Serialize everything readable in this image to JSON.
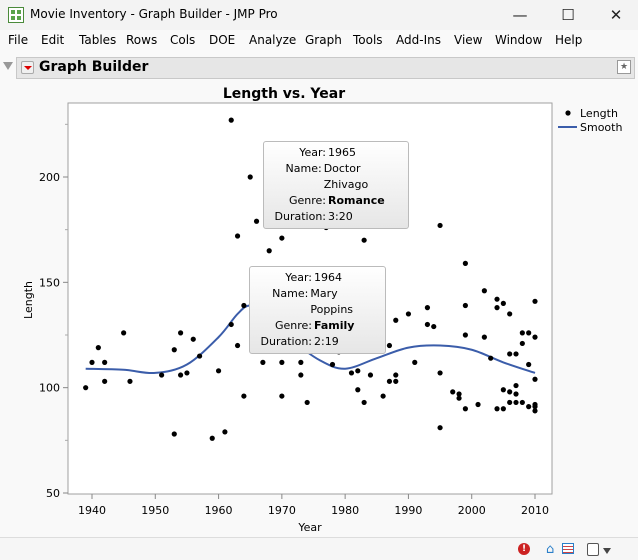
{
  "window": {
    "title": "Movie Inventory - Graph Builder - JMP Pro",
    "minimize": "—",
    "maximize": "☐",
    "close": "✕"
  },
  "menu": [
    "File",
    "Edit",
    "Tables",
    "Rows",
    "Cols",
    "DOE",
    "Analyze",
    "Graph",
    "Tools",
    "Add-Ins",
    "View",
    "Window",
    "Help"
  ],
  "panel": {
    "title": "Graph Builder"
  },
  "tooltips": [
    {
      "rows": [
        [
          "Year:",
          "1965",
          false
        ],
        [
          "Name:",
          "Doctor Zhivago",
          false
        ],
        [
          "Genre:",
          "Romance",
          true
        ],
        [
          "Duration:",
          "3:20",
          false
        ]
      ]
    },
    {
      "rows": [
        [
          "Year:",
          "1964",
          false
        ],
        [
          "Name:",
          "Mary Poppins",
          false
        ],
        [
          "Genre:",
          "Family",
          true
        ],
        [
          "Duration:",
          "2:19",
          false
        ]
      ]
    }
  ],
  "colors": {
    "points": "#000000",
    "smooth": "#3b5daa",
    "error": "#cc2222"
  },
  "chart_data": {
    "type": "scatter",
    "title": "Length vs. Year",
    "xlabel": "Year",
    "ylabel": "Length",
    "xlim": [
      1935.5,
      2012.5
    ],
    "ylim": [
      48,
      235
    ],
    "xticks": [
      1940,
      1950,
      1960,
      1970,
      1980,
      1990,
      2000,
      2010
    ],
    "yticks": [
      50,
      100,
      150,
      200
    ],
    "legend": {
      "position": "right",
      "entries": [
        "Length",
        "Smooth"
      ]
    },
    "points": [
      [
        1939,
        100
      ],
      [
        1940,
        112
      ],
      [
        1941,
        119
      ],
      [
        1942,
        112
      ],
      [
        1942,
        103
      ],
      [
        1945,
        126
      ],
      [
        1946,
        103
      ],
      [
        1951,
        106
      ],
      [
        1953,
        118
      ],
      [
        1953,
        78
      ],
      [
        1954,
        126
      ],
      [
        1954,
        106
      ],
      [
        1955,
        107
      ],
      [
        1956,
        123
      ],
      [
        1957,
        115
      ],
      [
        1959,
        76
      ],
      [
        1960,
        108
      ],
      [
        1961,
        79
      ],
      [
        1962,
        130
      ],
      [
        1962,
        227
      ],
      [
        1963,
        172
      ],
      [
        1963,
        120
      ],
      [
        1964,
        96
      ],
      [
        1964,
        139
      ],
      [
        1965,
        200
      ],
      [
        1966,
        179
      ],
      [
        1967,
        112
      ],
      [
        1968,
        165
      ],
      [
        1970,
        171
      ],
      [
        1970,
        112
      ],
      [
        1970,
        96
      ],
      [
        1973,
        112
      ],
      [
        1973,
        106
      ],
      [
        1974,
        93
      ],
      [
        1977,
        176
      ],
      [
        1978,
        111
      ],
      [
        1979,
        117
      ],
      [
        1981,
        107
      ],
      [
        1982,
        121
      ],
      [
        1982,
        108
      ],
      [
        1982,
        99
      ],
      [
        1983,
        170
      ],
      [
        1983,
        93
      ],
      [
        1984,
        106
      ],
      [
        1986,
        96
      ],
      [
        1987,
        120
      ],
      [
        1987,
        103
      ],
      [
        1988,
        103
      ],
      [
        1988,
        132
      ],
      [
        1988,
        106
      ],
      [
        1990,
        135
      ],
      [
        1991,
        112
      ],
      [
        1993,
        138
      ],
      [
        1993,
        130
      ],
      [
        1994,
        129
      ],
      [
        1995,
        177
      ],
      [
        1995,
        107
      ],
      [
        1995,
        81
      ],
      [
        1997,
        98
      ],
      [
        1998,
        97
      ],
      [
        1998,
        95
      ],
      [
        1999,
        159
      ],
      [
        1999,
        125
      ],
      [
        1999,
        90
      ],
      [
        1999,
        139
      ],
      [
        2001,
        92
      ],
      [
        2002,
        146
      ],
      [
        2002,
        124
      ],
      [
        2003,
        114
      ],
      [
        2004,
        138
      ],
      [
        2004,
        142
      ],
      [
        2005,
        140
      ],
      [
        2004,
        90
      ],
      [
        2005,
        90
      ],
      [
        2005,
        99
      ],
      [
        2006,
        135
      ],
      [
        2006,
        116
      ],
      [
        2007,
        116
      ],
      [
        2006,
        98
      ],
      [
        2007,
        101
      ],
      [
        2007,
        97
      ],
      [
        2007,
        93
      ],
      [
        2006,
        93
      ],
      [
        2008,
        126
      ],
      [
        2009,
        126
      ],
      [
        2008,
        121
      ],
      [
        2008,
        93
      ],
      [
        2009,
        91
      ],
      [
        2009,
        111
      ],
      [
        2010,
        141
      ],
      [
        2010,
        124
      ],
      [
        2010,
        104
      ],
      [
        2010,
        92
      ],
      [
        2010,
        91
      ],
      [
        2010,
        89
      ]
    ],
    "smooth": [
      [
        1939,
        109
      ],
      [
        1945,
        108.5
      ],
      [
        1950,
        107
      ],
      [
        1955,
        111
      ],
      [
        1960,
        124
      ],
      [
        1963,
        135
      ],
      [
        1965,
        139
      ],
      [
        1968,
        135
      ],
      [
        1972,
        122
      ],
      [
        1976,
        113
      ],
      [
        1980,
        109
      ],
      [
        1985,
        114
      ],
      [
        1990,
        119
      ],
      [
        1995,
        120
      ],
      [
        2000,
        118
      ],
      [
        2005,
        112
      ],
      [
        2010,
        107
      ]
    ]
  }
}
